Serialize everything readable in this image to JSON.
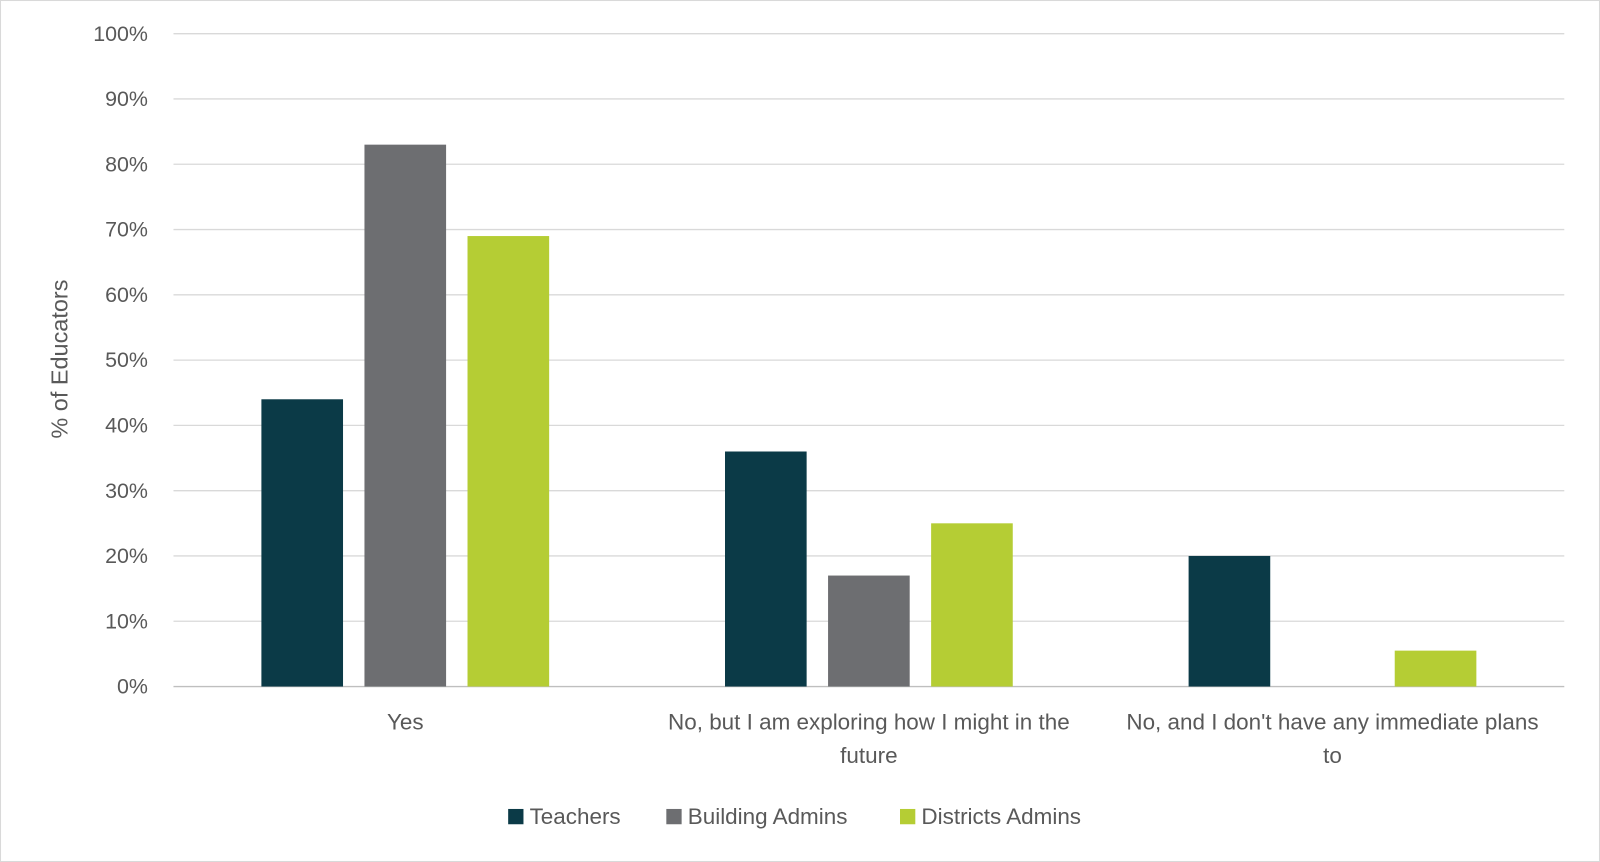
{
  "chart_data": {
    "type": "bar",
    "title": "",
    "xlabel": "",
    "ylabel": "% of Educators",
    "ylim": [
      0,
      100
    ],
    "yticks": [
      "0%",
      "10%",
      "20%",
      "30%",
      "40%",
      "50%",
      "60%",
      "70%",
      "80%",
      "90%",
      "100%"
    ],
    "grid": true,
    "legend_position": "bottom",
    "categories": [
      [
        "Yes"
      ],
      [
        "No, but I am exploring how I might in the",
        "future"
      ],
      [
        "No, and I don't have any immediate plans",
        "to"
      ]
    ],
    "series": [
      {
        "name": "Teachers",
        "color": "#0b3a47",
        "values": [
          44,
          36,
          20
        ]
      },
      {
        "name": "Building Admins",
        "color": "#6d6e71",
        "values": [
          83,
          17,
          0
        ]
      },
      {
        "name": "Districts Admins",
        "color": "#b5cd34",
        "values": [
          69,
          25,
          5.5
        ]
      }
    ]
  }
}
